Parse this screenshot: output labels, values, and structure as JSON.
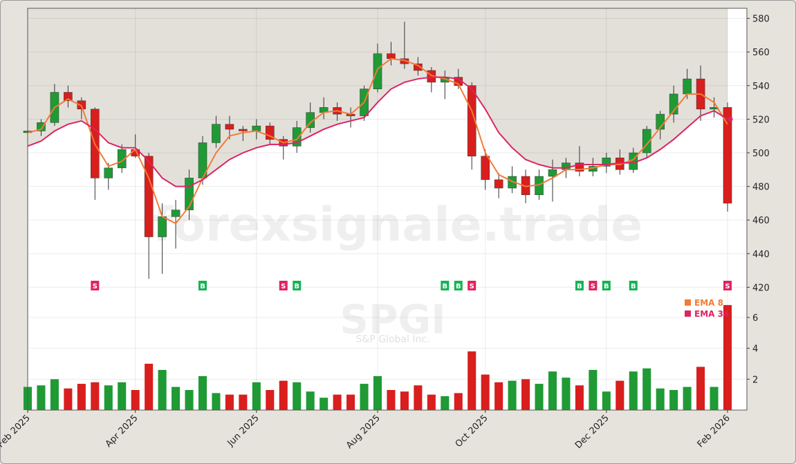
{
  "chart_data": {
    "type": "candlestick",
    "watermark": "forexsignale.trade",
    "symbol": "SPGI",
    "company": "S&P Global Inc.",
    "categories": [
      "Feb 2025",
      null,
      null,
      null,
      null,
      null,
      null,
      null,
      "Apr 2025",
      null,
      null,
      null,
      null,
      null,
      null,
      null,
      null,
      "Jun 2025",
      null,
      null,
      null,
      null,
      null,
      null,
      null,
      null,
      "Aug 2025",
      null,
      null,
      null,
      null,
      null,
      null,
      null,
      "Oct 2025",
      null,
      null,
      null,
      null,
      null,
      null,
      null,
      null,
      "Dec 2025",
      null,
      null,
      null,
      null,
      null,
      null,
      null,
      null,
      "Feb 2026"
    ],
    "open": [
      512,
      513,
      518,
      536,
      531,
      526,
      485,
      491,
      502,
      498,
      450,
      462,
      466,
      485,
      506,
      517,
      514,
      513,
      516,
      508,
      504,
      515,
      524,
      527,
      523,
      522,
      538,
      559,
      556,
      553,
      549,
      542,
      545,
      540,
      498,
      484,
      479,
      486,
      475,
      486,
      490,
      494,
      489,
      492,
      497,
      490,
      500,
      514,
      523,
      535,
      544,
      526,
      527
    ],
    "high": [
      516,
      520,
      541,
      540,
      533,
      527,
      494,
      505,
      511,
      500,
      470,
      472,
      490,
      510,
      522,
      522,
      516,
      520,
      518,
      510,
      519,
      530,
      533,
      530,
      527,
      540,
      565,
      566,
      578,
      557,
      551,
      549,
      550,
      542,
      502,
      488,
      492,
      490,
      490,
      496,
      497,
      504,
      497,
      500,
      502,
      503,
      516,
      525,
      540,
      550,
      552,
      533,
      530
    ],
    "low": [
      509,
      510,
      516,
      527,
      520,
      472,
      478,
      488,
      497,
      425,
      428,
      443,
      460,
      481,
      503,
      508,
      507,
      508,
      505,
      496,
      500,
      512,
      520,
      519,
      515,
      519,
      536,
      552,
      550,
      546,
      536,
      532,
      538,
      490,
      478,
      473,
      476,
      470,
      472,
      471,
      485,
      486,
      486,
      488,
      487,
      488,
      497,
      508,
      518,
      532,
      519,
      521,
      465
    ],
    "close": [
      513,
      518,
      536,
      531,
      526,
      485,
      491,
      502,
      498,
      450,
      462,
      466,
      485,
      506,
      517,
      514,
      513,
      516,
      508,
      504,
      515,
      524,
      527,
      523,
      522,
      538,
      559,
      556,
      553,
      549,
      542,
      545,
      540,
      498,
      484,
      479,
      486,
      475,
      486,
      490,
      494,
      489,
      492,
      497,
      490,
      500,
      514,
      523,
      535,
      544,
      526,
      527,
      470
    ],
    "volume": [
      1.5,
      1.6,
      2.0,
      1.4,
      1.7,
      1.8,
      1.6,
      1.8,
      1.3,
      3.0,
      2.6,
      1.5,
      1.3,
      2.2,
      1.1,
      1.0,
      1.0,
      1.8,
      1.3,
      1.9,
      1.8,
      1.2,
      0.8,
      1.0,
      1.0,
      1.7,
      2.2,
      1.3,
      1.2,
      1.6,
      1.0,
      0.9,
      1.1,
      3.8,
      2.3,
      1.8,
      1.9,
      2.0,
      1.7,
      2.5,
      2.1,
      1.6,
      2.6,
      1.2,
      1.9,
      2.5,
      2.7,
      1.4,
      1.3,
      1.5,
      2.8,
      1.5,
      6.8
    ],
    "up_color": "#1f9a35",
    "down_color": "#d91e1e",
    "series": [
      {
        "name": "EMA 8",
        "color": "#f27b35",
        "values": [
          512,
          514,
          527,
          532,
          528,
          505,
          492,
          495,
          502,
          485,
          462,
          458,
          468,
          485,
          500,
          510,
          512,
          513,
          510,
          506,
          508,
          518,
          524,
          525,
          523,
          530,
          550,
          556,
          555,
          552,
          546,
          544,
          541,
          525,
          500,
          487,
          483,
          480,
          481,
          485,
          490,
          490,
          491,
          493,
          493,
          496,
          505,
          515,
          525,
          535,
          535,
          530,
          517
        ]
      },
      {
        "name": "EMA 34",
        "color": "#dc2363",
        "values": [
          504,
          507,
          513,
          517,
          519,
          514,
          506,
          503,
          503,
          495,
          485,
          480,
          480,
          484,
          490,
          496,
          500,
          503,
          505,
          505,
          506,
          510,
          514,
          517,
          519,
          521,
          530,
          538,
          542,
          544,
          545,
          545,
          544,
          538,
          526,
          512,
          503,
          496,
          493,
          491,
          491,
          493,
          493,
          493,
          494,
          494,
          497,
          502,
          508,
          515,
          522,
          525,
          520
        ]
      }
    ],
    "signals": [
      {
        "x": 5,
        "label": "S",
        "color": "#e0245e"
      },
      {
        "x": 13,
        "label": "B",
        "color": "#16b355"
      },
      {
        "x": 19,
        "label": "S",
        "color": "#e0245e"
      },
      {
        "x": 20,
        "label": "B",
        "color": "#16b355"
      },
      {
        "x": 31,
        "label": "B",
        "color": "#16b355"
      },
      {
        "x": 32,
        "label": "B",
        "color": "#16b355"
      },
      {
        "x": 33,
        "label": "S",
        "color": "#e0245e"
      },
      {
        "x": 41,
        "label": "B",
        "color": "#16b355"
      },
      {
        "x": 42,
        "label": "S",
        "color": "#e0245e"
      },
      {
        "x": 43,
        "label": "B",
        "color": "#16b355"
      },
      {
        "x": 45,
        "label": "B",
        "color": "#16b355"
      },
      {
        "x": 52,
        "label": "S",
        "color": "#e0245e"
      }
    ],
    "ylim": [
      414,
      586
    ],
    "yticks": [
      420,
      440,
      460,
      480,
      500,
      520,
      540,
      560,
      580
    ],
    "y2lim": [
      0,
      7.3
    ],
    "y2ticks": [
      2,
      4,
      6
    ],
    "grid": true
  }
}
